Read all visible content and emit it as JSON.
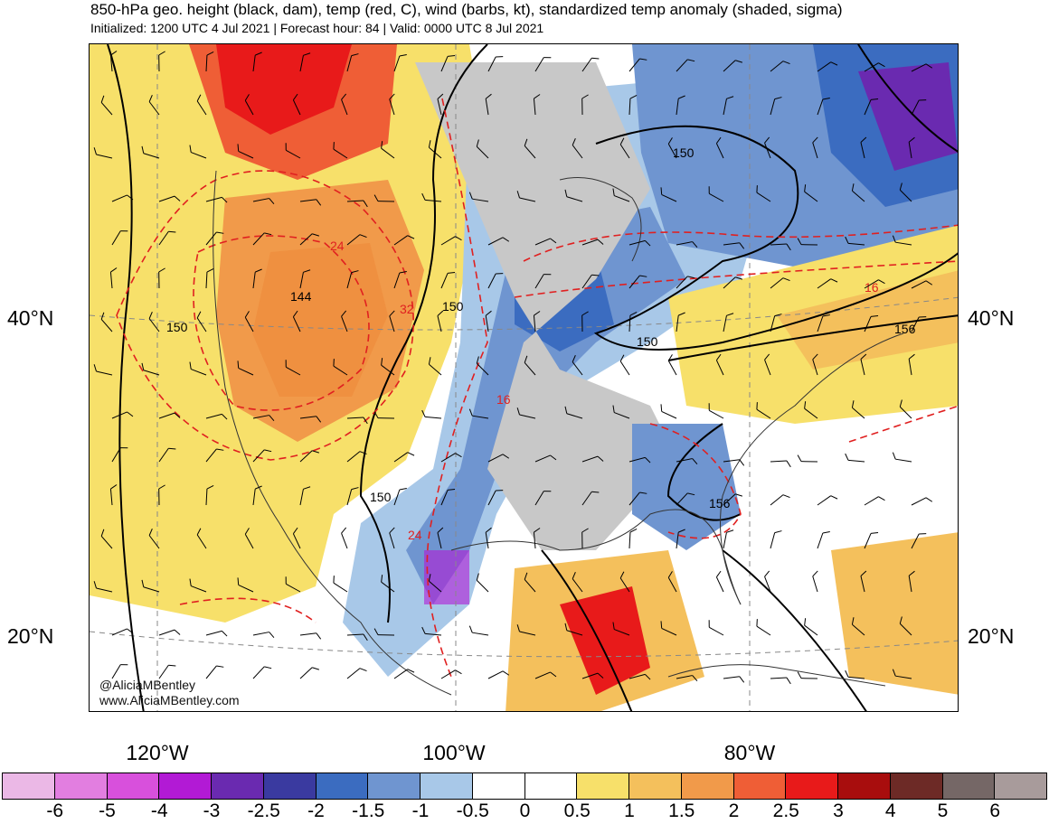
{
  "header": {
    "title": "850-hPa geo. height (black, dam), temp (red, C), wind (barbs, kt), standardized temp anomaly (shaded, sigma)",
    "subtitle": "Initialized: 1200 UTC 4 Jul 2021 | Forecast hour: 84 | Valid: 0000 UTC 8 Jul 2021"
  },
  "axes": {
    "lat_labels": [
      "40°N",
      "20°N"
    ],
    "lon_labels": [
      "120°W",
      "100°W",
      "80°W"
    ]
  },
  "contour_labels": {
    "height": [
      "150",
      "150",
      "150",
      "150",
      "150",
      "156",
      "156",
      "144"
    ],
    "temp": [
      "24",
      "32",
      "16",
      "24",
      "16"
    ]
  },
  "credit": {
    "handle": "@AliciaMBentley",
    "site": "www.AliciaMBentley.com"
  },
  "colorbar": {
    "colors": [
      "#ebb8e6",
      "#e27ee0",
      "#d850dc",
      "#b21ad5",
      "#6a2ab0",
      "#3a3aa0",
      "#3b6cc0",
      "#6f95d0",
      "#a8c8e8",
      "#ffffff",
      "#ffffff",
      "#f7e06a",
      "#f4c05c",
      "#f19a4a",
      "#ef5e36",
      "#e81a1a",
      "#a80d0d",
      "#6d2a26",
      "#756766",
      "#a89b9b"
    ],
    "ticks": [
      "-6",
      "-5",
      "-4",
      "-3",
      "-2.5",
      "-2",
      "-1.5",
      "-1",
      "-0.5",
      "0",
      "0.5",
      "1",
      "1.5",
      "2",
      "2.5",
      "3",
      "4",
      "5",
      "6"
    ]
  }
}
